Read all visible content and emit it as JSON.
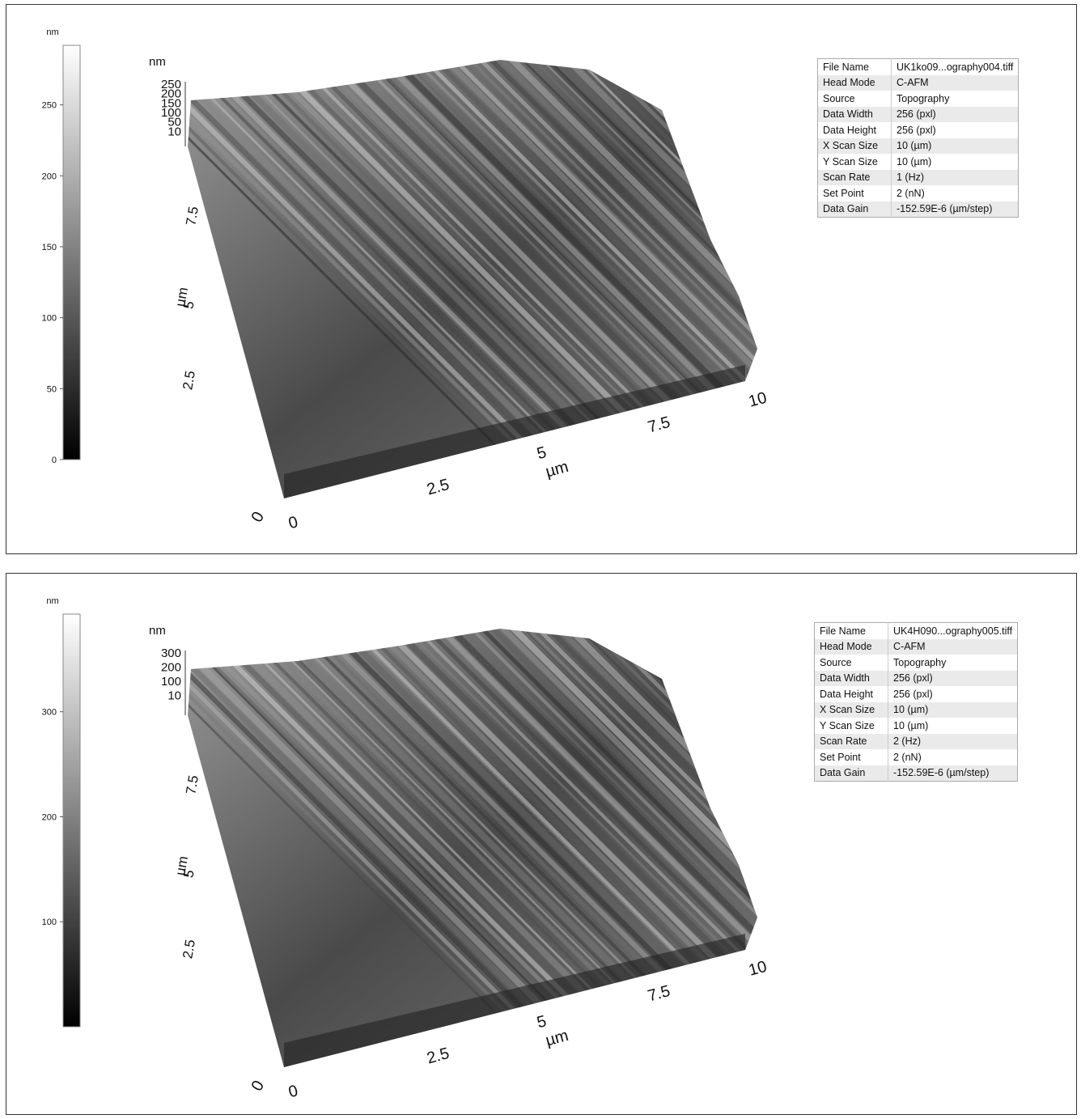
{
  "panels": [
    {
      "colorbar": {
        "unit": "nm",
        "range": [
          0,
          292
        ],
        "ticks": [
          0,
          50,
          100,
          150,
          200,
          250
        ]
      },
      "z_axis": {
        "unit": "nm",
        "ticks": [
          "250",
          "200",
          "150",
          "100",
          "50",
          "10"
        ]
      },
      "y_axis": {
        "unit": "µm",
        "ticks": [
          "2.5",
          "5",
          "7.5"
        ]
      },
      "x_axis": {
        "unit": "µm",
        "ticks": [
          "0",
          "2.5",
          "5",
          "7.5",
          "10"
        ]
      },
      "origin_label": "0",
      "info": [
        [
          "File Name",
          "UK1ko09...ography004.tiff"
        ],
        [
          "Head Mode",
          "C-AFM"
        ],
        [
          "Source",
          "Topography"
        ],
        [
          "Data Width",
          "256 (pxl)"
        ],
        [
          "Data Height",
          "256 (pxl)"
        ],
        [
          "X Scan Size",
          "10 (µm)"
        ],
        [
          "Y Scan Size",
          "10 (µm)"
        ],
        [
          "Scan Rate",
          "1 (Hz)"
        ],
        [
          "Set Point",
          "2 (nN)"
        ],
        [
          "Data Gain",
          "-152.59E-6 (µm/step)"
        ]
      ]
    },
    {
      "colorbar": {
        "unit": "nm",
        "range": [
          0,
          393
        ],
        "ticks": [
          100,
          200,
          300
        ]
      },
      "z_axis": {
        "unit": "nm",
        "ticks": [
          "300",
          "200",
          "100",
          "10"
        ]
      },
      "y_axis": {
        "unit": "µm",
        "ticks": [
          "2.5",
          "5",
          "7.5"
        ]
      },
      "x_axis": {
        "unit": "µm",
        "ticks": [
          "0",
          "2.5",
          "5",
          "7.5",
          "10"
        ]
      },
      "origin_label": "0",
      "info": [
        [
          "File Name",
          "UK4H090...ography005.tiff"
        ],
        [
          "Head Mode",
          "C-AFM"
        ],
        [
          "Source",
          "Topography"
        ],
        [
          "Data Width",
          "256 (pxl)"
        ],
        [
          "Data Height",
          "256 (pxl)"
        ],
        [
          "X Scan Size",
          "10 (µm)"
        ],
        [
          "Y Scan Size",
          "10 (µm)"
        ],
        [
          "Scan Rate",
          "2 (Hz)"
        ],
        [
          "Set Point",
          "2 (nN)"
        ],
        [
          "Data Gain",
          "-152.59E-6 (µm/step)"
        ]
      ]
    }
  ]
}
